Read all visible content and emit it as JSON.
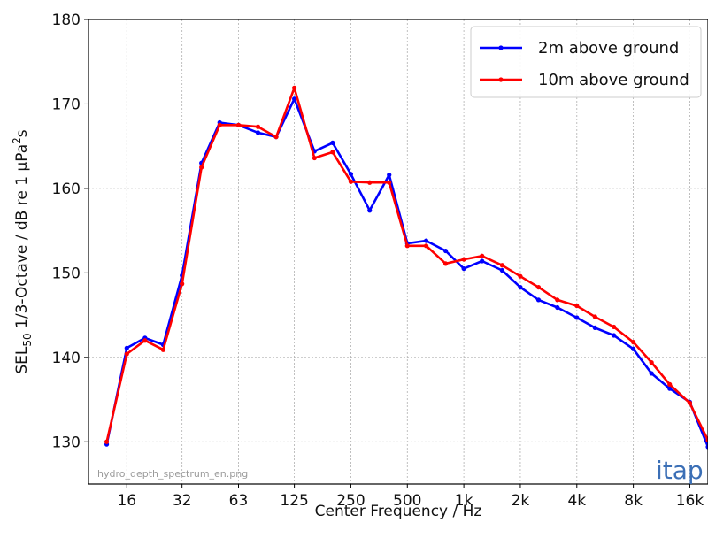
{
  "chart_data": {
    "type": "line",
    "title": "",
    "xlabel": "Center Frequency / Hz",
    "ylabel": "SEL50 1/3-Octave / dB re 1 µPa²s",
    "ylabel_parts": {
      "pre": "SEL",
      "sub": "50",
      "mid": " 1/3-Octave / dB re 1 µPa",
      "sup": "2",
      "post": "s"
    },
    "x_scale": "log",
    "xlim": [
      10,
      20000
    ],
    "ylim": [
      125,
      180
    ],
    "xticks": [
      16,
      31.5,
      63,
      125,
      250,
      500,
      1000,
      2000,
      4000,
      8000,
      16000
    ],
    "xtick_labels": [
      "16",
      "32",
      "63",
      "125",
      "250",
      "500",
      "1k",
      "2k",
      "4k",
      "8k",
      "16k"
    ],
    "yticks": [
      130,
      140,
      150,
      160,
      170,
      180
    ],
    "grid": true,
    "legend_position": "top-right",
    "x": [
      12.5,
      16,
      20,
      25,
      31.5,
      40,
      50,
      63,
      80,
      100,
      125,
      160,
      200,
      250,
      315,
      400,
      500,
      630,
      800,
      1000,
      1250,
      1600,
      2000,
      2500,
      3150,
      4000,
      5000,
      6300,
      8000,
      10000,
      12500,
      16000,
      20000
    ],
    "series": [
      {
        "name": "2m above ground",
        "color": "#0000ff",
        "values": [
          129.7,
          141.1,
          142.3,
          141.5,
          149.7,
          163.0,
          167.8,
          167.5,
          166.6,
          166.1,
          170.6,
          164.4,
          165.4,
          161.7,
          157.4,
          161.6,
          153.5,
          153.8,
          152.6,
          150.5,
          151.4,
          150.3,
          148.3,
          146.8,
          145.9,
          144.7,
          143.5,
          142.6,
          141.0,
          138.1,
          136.3,
          134.7,
          129.4
        ]
      },
      {
        "name": "10m above ground",
        "color": "#ff0000",
        "values": [
          130.0,
          140.4,
          142.0,
          140.9,
          148.7,
          162.5,
          167.5,
          167.5,
          167.3,
          166.1,
          171.9,
          163.6,
          164.3,
          160.8,
          160.7,
          160.7,
          153.2,
          153.2,
          151.1,
          151.6,
          152.0,
          150.9,
          149.6,
          148.3,
          146.8,
          146.1,
          144.8,
          143.6,
          141.8,
          139.4,
          136.8,
          134.6,
          130.2
        ]
      }
    ],
    "watermark_text": "hydro_depth_spectrum_en.png",
    "logo_text": "itap"
  }
}
